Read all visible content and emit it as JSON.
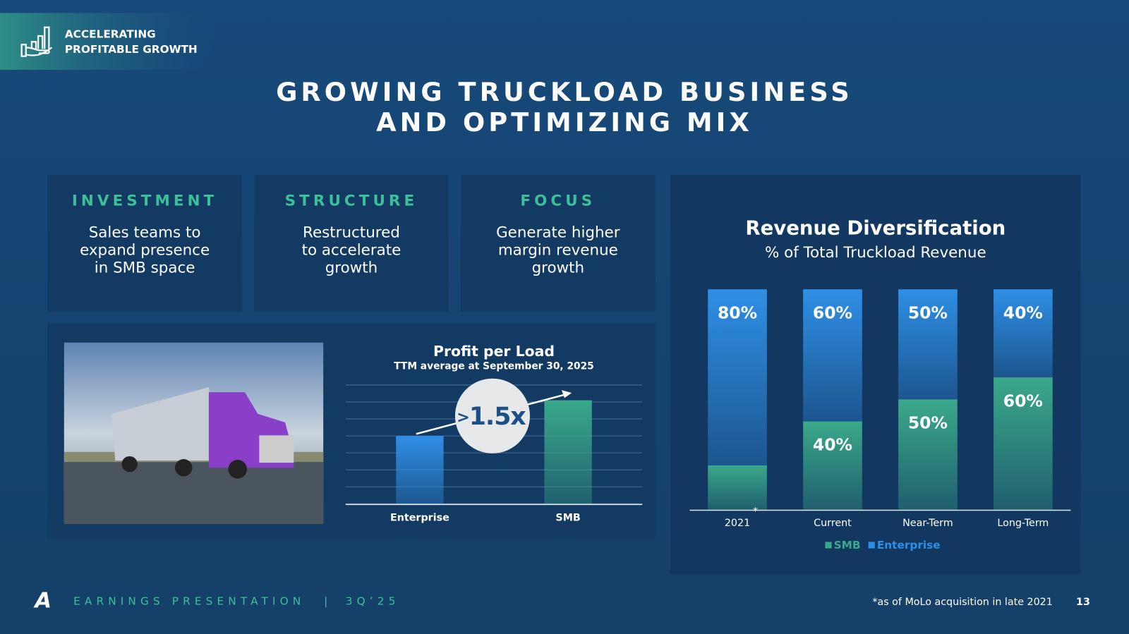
{
  "header": {
    "badge": [
      "ACCELERATING",
      "PROFITABLE GROWTH"
    ]
  },
  "title": [
    "GROWING TRUCKLOAD BUSINESS",
    "AND OPTIMIZING MIX"
  ],
  "cards": [
    {
      "heading": "INVESTMENT",
      "body": [
        "Sales teams to",
        "expand presence",
        "in SMB space"
      ]
    },
    {
      "heading": "STRUCTURE",
      "body": [
        "Restructured",
        "to accelerate",
        "growth"
      ]
    },
    {
      "heading": "FOCUS",
      "body": [
        "Generate higher",
        "margin revenue",
        "growth"
      ]
    }
  ],
  "chart_data": [
    {
      "type": "bar",
      "title": "Profit per Load",
      "subtitle": "TTM average at September 30, 2025",
      "categories": [
        "Enterprise",
        "SMB"
      ],
      "values": [
        4,
        6.1
      ],
      "colors": [
        "#2f8fe6",
        "#3aa98a"
      ],
      "ylim": [
        0,
        7
      ],
      "yticks": [
        0,
        1,
        2,
        3,
        4,
        5,
        6,
        7
      ],
      "grid": true,
      "annotation": ">1.5x"
    },
    {
      "type": "bar",
      "stacked": true,
      "title": "Revenue Diversification",
      "subtitle": "% of Total Truckload Revenue",
      "categories": [
        "2021",
        "Current",
        "Near-Term",
        "Long-Term"
      ],
      "series": [
        {
          "name": "SMB",
          "color": "#3aa98a",
          "values": [
            20,
            40,
            50,
            60
          ],
          "value_labels": [
            null,
            "40%",
            "50%",
            "60%"
          ]
        },
        {
          "name": "Enterprise",
          "color": "#2f8fe6",
          "values": [
            80,
            60,
            50,
            40
          ],
          "value_labels": [
            "80%",
            "60%",
            "50%",
            "40%"
          ]
        }
      ],
      "ylim": [
        0,
        100
      ],
      "annotation": "*",
      "legend": "bottom"
    }
  ],
  "footer": {
    "left": "EARNINGS PRESENTATION",
    "separator": "|",
    "period": "3Q’25",
    "note": "*as of MoLo acquisition in late 2021",
    "page": "13"
  }
}
